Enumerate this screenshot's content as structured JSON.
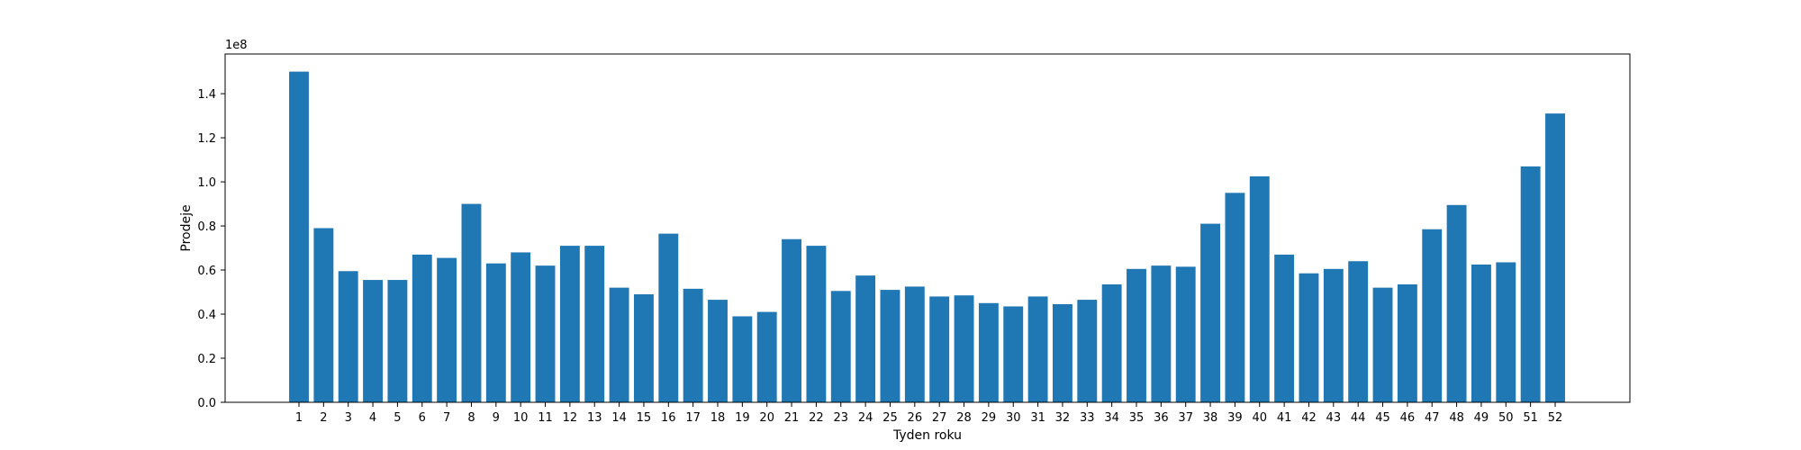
{
  "chart_data": {
    "type": "bar",
    "title": "",
    "xlabel": "Tyden roku",
    "ylabel": "Prodeje",
    "y_offset_label": "1e8",
    "y_tick_labels": [
      "0.0",
      "0.2",
      "0.4",
      "0.6",
      "0.8",
      "1.0",
      "1.2",
      "1.4"
    ],
    "ylim": [
      0,
      158000000
    ],
    "grid": false,
    "bar_color": "#1f77b4",
    "categories": [
      "1",
      "2",
      "3",
      "4",
      "5",
      "6",
      "7",
      "8",
      "9",
      "10",
      "11",
      "12",
      "13",
      "14",
      "15",
      "16",
      "17",
      "18",
      "19",
      "20",
      "21",
      "22",
      "23",
      "24",
      "25",
      "26",
      "27",
      "28",
      "29",
      "30",
      "31",
      "32",
      "33",
      "34",
      "35",
      "36",
      "37",
      "38",
      "39",
      "40",
      "41",
      "42",
      "43",
      "44",
      "45",
      "46",
      "47",
      "48",
      "49",
      "50",
      "51",
      "52"
    ],
    "values": [
      150000000,
      79000000,
      59500000,
      55500000,
      55500000,
      67000000,
      65500000,
      90000000,
      63000000,
      68000000,
      62000000,
      71000000,
      71000000,
      52000000,
      49000000,
      76500000,
      51500000,
      46500000,
      39000000,
      41000000,
      74000000,
      71000000,
      50500000,
      57500000,
      51000000,
      52500000,
      48000000,
      48500000,
      45000000,
      43500000,
      48000000,
      44500000,
      46500000,
      53500000,
      60500000,
      62000000,
      61500000,
      81000000,
      95000000,
      102500000,
      67000000,
      58500000,
      60500000,
      64000000,
      52000000,
      53500000,
      78500000,
      89500000,
      62500000,
      63500000,
      107000000,
      131000000
    ]
  }
}
